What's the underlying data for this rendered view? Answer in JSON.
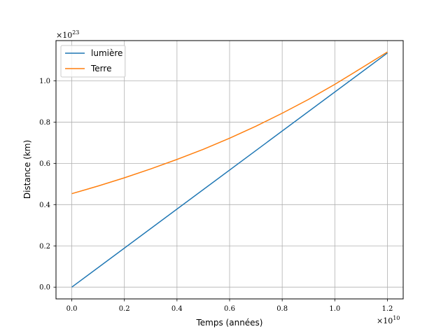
{
  "chart_data": {
    "type": "line",
    "xlabel": "Temps (années)",
    "ylabel": "Distance (km)",
    "x_multiplier": {
      "base": "×10",
      "exponent": "10"
    },
    "y_multiplier": {
      "base": "×10",
      "exponent": "23"
    },
    "xlim": [
      -0.06,
      1.26
    ],
    "ylim": [
      -0.057,
      1.195
    ],
    "x_ticks": [
      0.0,
      0.2,
      0.4,
      0.6,
      0.8,
      1.0,
      1.2
    ],
    "x_tick_labels": [
      "0.0",
      "0.2",
      "0.4",
      "0.6",
      "0.8",
      "1.0",
      "1.2"
    ],
    "y_ticks": [
      0.0,
      0.2,
      0.4,
      0.6,
      0.8,
      1.0
    ],
    "y_tick_labels": [
      "0.0",
      "0.2",
      "0.4",
      "0.6",
      "0.8",
      "1.0"
    ],
    "grid": true,
    "legend_placement": "top-left",
    "series": [
      {
        "name": "lumière",
        "color": "#1f77b4",
        "x": [
          0.0,
          1.2
        ],
        "y": [
          0.0,
          1.135
        ]
      },
      {
        "name": "Terre",
        "color": "#ff7f0e",
        "x": [
          0.0,
          0.1,
          0.2,
          0.3,
          0.4,
          0.5,
          0.6,
          0.7,
          0.8,
          0.9,
          1.0,
          1.1,
          1.2
        ],
        "y": [
          0.453,
          0.49,
          0.53,
          0.573,
          0.619,
          0.668,
          0.722,
          0.78,
          0.843,
          0.91,
          0.983,
          1.061,
          1.14
        ]
      }
    ]
  }
}
